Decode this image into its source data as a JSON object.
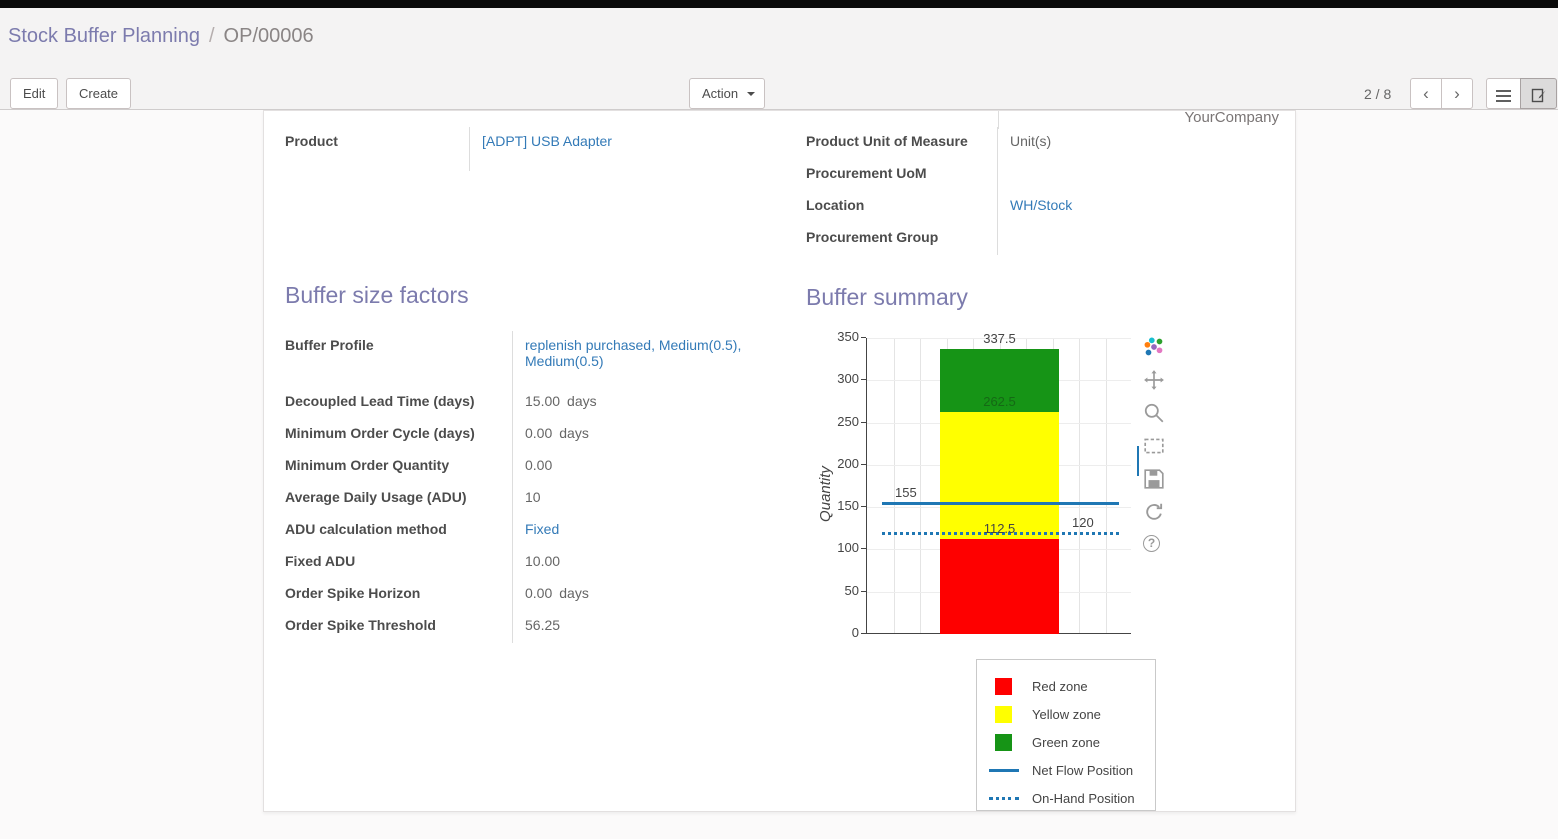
{
  "colors": {
    "accent": "#7c7bad",
    "link": "#337ab7"
  },
  "breadcrumb": {
    "parent": "Stock Buffer Planning",
    "separator": "/",
    "current": "OP/00006"
  },
  "toolbar": {
    "edit": "Edit",
    "create": "Create",
    "action": "Action",
    "pager": "2 / 8"
  },
  "sheet": {
    "company": "YourCompany",
    "fields_left": [
      {
        "label": "Product",
        "value": "[ADPT] USB Adapter"
      }
    ],
    "fields_right": [
      {
        "label": "Product Unit of Measure",
        "value": "Unit(s)"
      },
      {
        "label": "Procurement UoM",
        "value": ""
      },
      {
        "label": "Location",
        "value": "WH/Stock"
      },
      {
        "label": "Procurement Group",
        "value": ""
      }
    ],
    "factors": {
      "title": "Buffer size factors",
      "rows": [
        {
          "label": "Buffer Profile",
          "value": "replenish purchased, Medium(0.5), Medium(0.5)"
        },
        {
          "label": "Decoupled Lead Time (days)",
          "value": "15.00",
          "suffix": "days"
        },
        {
          "label": "Minimum Order Cycle (days)",
          "value": "0.00",
          "suffix": "days"
        },
        {
          "label": "Minimum Order Quantity",
          "value": "0.00"
        },
        {
          "label": "Average Daily Usage (ADU)",
          "value": "10"
        },
        {
          "label": "ADU calculation method",
          "value": "Fixed"
        },
        {
          "label": "Fixed ADU",
          "value": "10.00"
        },
        {
          "label": "Order Spike Horizon",
          "value": "0.00",
          "suffix": "days"
        },
        {
          "label": "Order Spike Threshold",
          "value": "56.25"
        }
      ]
    },
    "summary_title": "Buffer summary"
  },
  "chart_data": {
    "type": "bar",
    "title": "Buffer summary",
    "ylabel": "Quantity",
    "ylim": [
      0,
      350
    ],
    "yticks": [
      0,
      50,
      100,
      150,
      200,
      250,
      300,
      350
    ],
    "grid": true,
    "legend_position": "bottom-right",
    "zones": [
      {
        "name": "Red zone",
        "from": 0,
        "to": 112.5,
        "color": "#fe0000"
      },
      {
        "name": "Yellow zone",
        "from": 112.5,
        "to": 262.5,
        "color": "#ffff00"
      },
      {
        "name": "Green zone",
        "from": 262.5,
        "to": 337.5,
        "color": "#169416"
      }
    ],
    "lines": [
      {
        "name": "Net Flow Position",
        "value": 155,
        "style": "solid",
        "color": "#1f77b4"
      },
      {
        "name": "On-Hand Position",
        "value": 120,
        "style": "dotted",
        "color": "#1f77b4"
      }
    ],
    "annotations": [
      {
        "text": "337.5",
        "y": 337.5,
        "x": "bar-center"
      },
      {
        "text": "262.5",
        "y": 262.5,
        "x": "bar-center",
        "color": "#156915"
      },
      {
        "text": "155",
        "y": 155,
        "x": "left"
      },
      {
        "text": "112.5",
        "y": 112.5,
        "x": "bar-center"
      },
      {
        "text": "120",
        "y": 120,
        "x": "right"
      }
    ]
  }
}
